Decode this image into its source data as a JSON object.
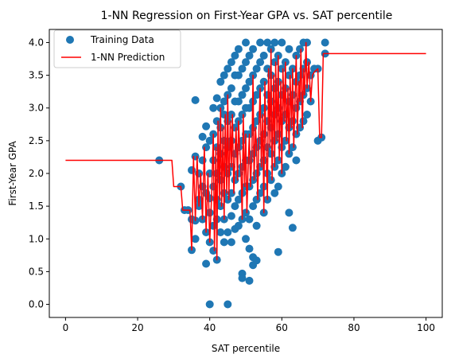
{
  "chart_data": {
    "type": "scatter",
    "title": "1-NN Regression on First-Year GPA vs. SAT percentile",
    "xlabel": "SAT percentile",
    "ylabel": "First-Year GPA",
    "xlim": [
      -4.5,
      104.5
    ],
    "ylim": [
      -0.2,
      4.2
    ],
    "xticks": [
      0,
      20,
      40,
      60,
      80,
      100
    ],
    "yticks": [
      0.0,
      0.5,
      1.0,
      1.5,
      2.0,
      2.5,
      3.0,
      3.5,
      4.0
    ],
    "grid": false,
    "legend_position": "top-left",
    "colors": {
      "scatter": "#1f77b4",
      "line": "#ff0000"
    },
    "series": [
      {
        "name": "Training Data",
        "kind": "scatter",
        "points": [
          [
            26,
            2.2
          ],
          [
            32,
            1.8
          ],
          [
            33,
            1.44
          ],
          [
            34,
            1.44
          ],
          [
            35,
            1.3
          ],
          [
            35,
            0.83
          ],
          [
            35,
            2.05
          ],
          [
            36,
            2.26
          ],
          [
            36,
            1.0
          ],
          [
            36,
            1.28
          ],
          [
            36,
            3.12
          ],
          [
            37,
            1.6
          ],
          [
            37,
            2.0
          ],
          [
            37,
            1.5
          ],
          [
            38,
            2.56
          ],
          [
            38,
            1.8
          ],
          [
            38,
            2.2
          ],
          [
            38,
            1.3
          ],
          [
            39,
            2.72
          ],
          [
            39,
            2.4
          ],
          [
            39,
            1.7
          ],
          [
            39,
            1.1
          ],
          [
            39,
            0.62
          ],
          [
            40,
            1.62
          ],
          [
            40,
            2.0
          ],
          [
            40,
            2.5
          ],
          [
            40,
            1.4
          ],
          [
            40,
            0.95
          ],
          [
            40,
            0.0
          ],
          [
            41,
            3.0
          ],
          [
            41,
            2.6
          ],
          [
            41,
            2.2
          ],
          [
            41,
            1.8
          ],
          [
            41,
            1.2
          ],
          [
            41,
            0.82
          ],
          [
            42,
            3.15
          ],
          [
            42,
            2.8
          ],
          [
            42,
            2.4
          ],
          [
            42,
            2.0
          ],
          [
            42,
            1.6
          ],
          [
            42,
            1.3
          ],
          [
            42,
            0.68
          ],
          [
            43,
            3.4
          ],
          [
            43,
            3.0
          ],
          [
            43,
            2.7
          ],
          [
            43,
            2.3
          ],
          [
            43,
            1.9
          ],
          [
            43,
            1.5
          ],
          [
            43,
            1.1
          ],
          [
            44,
            3.5
          ],
          [
            44,
            3.1
          ],
          [
            44,
            2.9
          ],
          [
            44,
            2.5
          ],
          [
            44,
            2.1
          ],
          [
            44,
            1.7
          ],
          [
            44,
            1.3
          ],
          [
            44,
            0.95
          ],
          [
            45,
            3.6
          ],
          [
            45,
            3.2
          ],
          [
            45,
            2.8
          ],
          [
            45,
            2.4
          ],
          [
            45,
            2.0
          ],
          [
            45,
            1.6
          ],
          [
            45,
            1.1
          ],
          [
            45,
            0.0
          ],
          [
            46,
            3.7
          ],
          [
            46,
            3.3
          ],
          [
            46,
            2.9
          ],
          [
            46,
            2.5
          ],
          [
            46,
            2.1
          ],
          [
            46,
            1.7
          ],
          [
            46,
            1.35
          ],
          [
            46,
            0.95
          ],
          [
            47,
            3.8
          ],
          [
            47,
            3.5
          ],
          [
            47,
            3.1
          ],
          [
            47,
            2.7
          ],
          [
            47,
            2.3
          ],
          [
            47,
            1.9
          ],
          [
            47,
            1.5
          ],
          [
            47,
            1.15
          ],
          [
            48,
            3.9
          ],
          [
            48,
            3.5
          ],
          [
            48,
            3.1
          ],
          [
            48,
            2.8
          ],
          [
            48,
            2.4
          ],
          [
            48,
            2.0
          ],
          [
            48,
            1.6
          ],
          [
            48,
            1.2
          ],
          [
            49,
            3.6
          ],
          [
            49,
            3.2
          ],
          [
            49,
            2.9
          ],
          [
            49,
            2.5
          ],
          [
            49,
            2.1
          ],
          [
            49,
            1.7
          ],
          [
            49,
            1.3
          ],
          [
            49,
            0.47
          ],
          [
            49,
            0.4
          ],
          [
            50,
            4.0
          ],
          [
            50,
            3.7
          ],
          [
            50,
            3.3
          ],
          [
            50,
            3.0
          ],
          [
            50,
            2.6
          ],
          [
            50,
            2.2
          ],
          [
            50,
            1.8
          ],
          [
            50,
            1.4
          ],
          [
            50,
            1.0
          ],
          [
            51,
            3.8
          ],
          [
            51,
            3.4
          ],
          [
            51,
            3.0
          ],
          [
            51,
            2.6
          ],
          [
            51,
            2.2
          ],
          [
            51,
            1.8
          ],
          [
            51,
            1.3
          ],
          [
            51,
            0.85
          ],
          [
            51,
            0.36
          ],
          [
            52,
            3.9
          ],
          [
            52,
            3.5
          ],
          [
            52,
            3.1
          ],
          [
            52,
            2.7
          ],
          [
            52,
            2.3
          ],
          [
            52,
            1.9
          ],
          [
            52,
            1.5
          ],
          [
            52,
            0.72
          ],
          [
            52,
            0.6
          ],
          [
            53,
            3.6
          ],
          [
            53,
            3.2
          ],
          [
            53,
            2.8
          ],
          [
            53,
            2.4
          ],
          [
            53,
            2.0
          ],
          [
            53,
            1.6
          ],
          [
            53,
            1.2
          ],
          [
            53,
            0.67
          ],
          [
            54,
            4.0
          ],
          [
            54,
            3.7
          ],
          [
            54,
            3.3
          ],
          [
            54,
            2.9
          ],
          [
            54,
            2.5
          ],
          [
            54,
            2.1
          ],
          [
            54,
            1.7
          ],
          [
            55,
            3.8
          ],
          [
            55,
            3.4
          ],
          [
            55,
            3.0
          ],
          [
            55,
            2.6
          ],
          [
            55,
            2.2
          ],
          [
            55,
            1.8
          ],
          [
            55,
            1.4
          ],
          [
            56,
            4.0
          ],
          [
            56,
            3.6
          ],
          [
            56,
            3.2
          ],
          [
            56,
            2.8
          ],
          [
            56,
            2.4
          ],
          [
            56,
            2.0
          ],
          [
            56,
            1.6
          ],
          [
            57,
            3.9
          ],
          [
            57,
            3.5
          ],
          [
            57,
            3.1
          ],
          [
            57,
            2.7
          ],
          [
            57,
            2.3
          ],
          [
            57,
            1.9
          ],
          [
            58,
            4.0
          ],
          [
            58,
            3.7
          ],
          [
            58,
            3.3
          ],
          [
            58,
            2.9
          ],
          [
            58,
            2.5
          ],
          [
            58,
            2.1
          ],
          [
            58,
            1.7
          ],
          [
            59,
            3.8
          ],
          [
            59,
            3.4
          ],
          [
            59,
            3.0
          ],
          [
            59,
            2.6
          ],
          [
            59,
            2.2
          ],
          [
            59,
            1.8
          ],
          [
            59,
            0.8
          ],
          [
            60,
            4.0
          ],
          [
            60,
            3.6
          ],
          [
            60,
            3.2
          ],
          [
            60,
            2.8
          ],
          [
            60,
            2.4
          ],
          [
            60,
            2.0
          ],
          [
            61,
            3.7
          ],
          [
            61,
            3.3
          ],
          [
            61,
            2.9
          ],
          [
            61,
            2.5
          ],
          [
            61,
            2.1
          ],
          [
            62,
            3.9
          ],
          [
            62,
            3.5
          ],
          [
            62,
            3.1
          ],
          [
            62,
            2.7
          ],
          [
            62,
            2.3
          ],
          [
            62,
            1.4
          ],
          [
            63,
            3.6
          ],
          [
            63,
            3.2
          ],
          [
            63,
            2.8
          ],
          [
            63,
            2.4
          ],
          [
            63,
            1.17
          ],
          [
            64,
            3.8
          ],
          [
            64,
            3.4
          ],
          [
            64,
            3.0
          ],
          [
            64,
            2.6
          ],
          [
            64,
            2.2
          ],
          [
            65,
            3.9
          ],
          [
            65,
            3.5
          ],
          [
            65,
            3.1
          ],
          [
            65,
            2.7
          ],
          [
            66,
            4.0
          ],
          [
            66,
            3.6
          ],
          [
            66,
            3.2
          ],
          [
            66,
            2.8
          ],
          [
            67,
            4.0
          ],
          [
            67,
            3.7
          ],
          [
            67,
            3.3
          ],
          [
            67,
            2.9
          ],
          [
            68,
            3.5
          ],
          [
            68,
            3.1
          ],
          [
            69,
            3.6
          ],
          [
            70,
            3.6
          ],
          [
            70,
            2.5
          ],
          [
            71,
            2.55
          ],
          [
            72,
            4.0
          ],
          [
            72,
            3.83
          ]
        ]
      },
      {
        "name": "1-NN Prediction",
        "kind": "line",
        "points": [
          [
            0,
            2.2
          ],
          [
            29.5,
            2.2
          ],
          [
            30,
            1.8
          ],
          [
            32,
            1.8
          ],
          [
            32.5,
            1.44
          ],
          [
            34.5,
            1.44
          ],
          [
            35,
            0.83
          ],
          [
            35.5,
            2.26
          ],
          [
            36,
            1.28
          ],
          [
            36.5,
            2.26
          ],
          [
            37,
            1.5
          ],
          [
            37.5,
            2.0
          ],
          [
            38,
            1.3
          ],
          [
            38.5,
            2.4
          ],
          [
            39,
            1.1
          ],
          [
            39.5,
            2.0
          ],
          [
            40,
            0.95
          ],
          [
            40.5,
            1.62
          ],
          [
            41,
            2.6
          ],
          [
            41.3,
            0.82
          ],
          [
            41.7,
            2.4
          ],
          [
            42,
            0.68
          ],
          [
            42.3,
            2.8
          ],
          [
            42.7,
            1.6
          ],
          [
            43,
            3.0
          ],
          [
            43.3,
            1.5
          ],
          [
            43.7,
            2.7
          ],
          [
            44,
            1.3
          ],
          [
            44.3,
            2.9
          ],
          [
            44.7,
            1.7
          ],
          [
            45,
            3.2
          ],
          [
            45.3,
            1.6
          ],
          [
            45.7,
            2.8
          ],
          [
            46,
            2.1
          ],
          [
            46.3,
            2.9
          ],
          [
            46.7,
            1.7
          ],
          [
            47,
            2.3
          ],
          [
            47.3,
            2.7
          ],
          [
            47.7,
            1.9
          ],
          [
            48,
            2.8
          ],
          [
            48.3,
            2.4
          ],
          [
            48.7,
            2.0
          ],
          [
            49,
            1.3
          ],
          [
            49.3,
            2.9
          ],
          [
            49.7,
            1.8
          ],
          [
            50,
            2.6
          ],
          [
            50.3,
            1.4
          ],
          [
            50.7,
            2.2
          ],
          [
            51,
            2.6
          ],
          [
            51.3,
            1.8
          ],
          [
            51.7,
            2.3
          ],
          [
            52,
            3.5
          ],
          [
            52.3,
            1.9
          ],
          [
            52.7,
            2.7
          ],
          [
            53,
            2.4
          ],
          [
            53.3,
            1.6
          ],
          [
            53.7,
            2.8
          ],
          [
            54,
            3.3
          ],
          [
            54.3,
            2.1
          ],
          [
            54.7,
            2.9
          ],
          [
            55,
            1.4
          ],
          [
            55.3,
            3.4
          ],
          [
            55.7,
            2.2
          ],
          [
            56,
            1.6
          ],
          [
            56.3,
            3.6
          ],
          [
            56.7,
            2.4
          ],
          [
            57,
            3.9
          ],
          [
            57.3,
            1.9
          ],
          [
            57.7,
            3.5
          ],
          [
            58,
            2.1
          ],
          [
            58.3,
            3.7
          ],
          [
            58.7,
            2.5
          ],
          [
            59,
            3.8
          ],
          [
            59.3,
            2.2
          ],
          [
            59.7,
            3.4
          ],
          [
            60,
            2.0
          ],
          [
            60.3,
            3.6
          ],
          [
            60.7,
            2.8
          ],
          [
            61,
            3.7
          ],
          [
            61.3,
            2.5
          ],
          [
            61.7,
            3.3
          ],
          [
            62,
            2.3
          ],
          [
            62.3,
            3.5
          ],
          [
            62.7,
            2.7
          ],
          [
            63,
            3.6
          ],
          [
            63.3,
            2.4
          ],
          [
            63.7,
            3.2
          ],
          [
            64,
            3.8
          ],
          [
            64.3,
            2.6
          ],
          [
            64.7,
            3.4
          ],
          [
            65,
            3.1
          ],
          [
            65.3,
            3.9
          ],
          [
            65.7,
            2.7
          ],
          [
            66,
            3.6
          ],
          [
            66.3,
            3.2
          ],
          [
            66.7,
            4.0
          ],
          [
            67,
            3.3
          ],
          [
            67.5,
            3.7
          ],
          [
            68,
            3.1
          ],
          [
            68.5,
            3.5
          ],
          [
            69,
            3.55
          ],
          [
            70,
            3.6
          ],
          [
            70.5,
            2.55
          ],
          [
            71,
            2.55
          ],
          [
            71.5,
            3.83
          ],
          [
            100,
            3.83
          ]
        ]
      }
    ]
  }
}
